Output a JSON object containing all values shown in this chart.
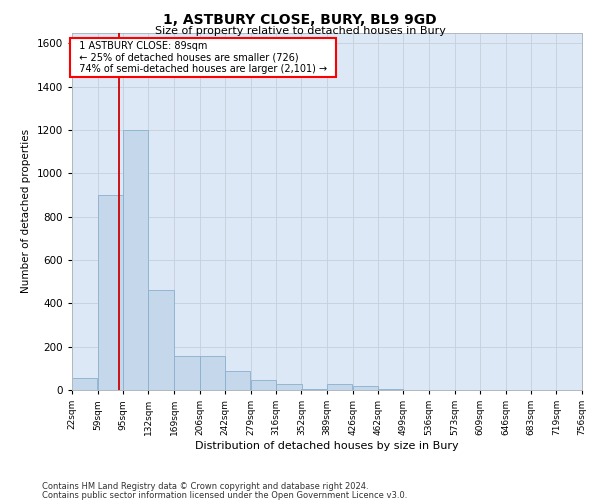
{
  "title": "1, ASTBURY CLOSE, BURY, BL9 9GD",
  "subtitle": "Size of property relative to detached houses in Bury",
  "xlabel": "Distribution of detached houses by size in Bury",
  "ylabel": "Number of detached properties",
  "footnote1": "Contains HM Land Registry data © Crown copyright and database right 2024.",
  "footnote2": "Contains public sector information licensed under the Open Government Licence v3.0.",
  "annotation_line1": "1 ASTBURY CLOSE: 89sqm",
  "annotation_line2": "← 25% of detached houses are smaller (726)",
  "annotation_line3": "74% of semi-detached houses are larger (2,101) →",
  "property_line_x": 89,
  "bin_edges": [
    22,
    59,
    95,
    132,
    169,
    206,
    242,
    279,
    316,
    352,
    389,
    426,
    462,
    499,
    536,
    573,
    609,
    646,
    683,
    719,
    756
  ],
  "bar_values": [
    55,
    900,
    1200,
    460,
    155,
    155,
    90,
    45,
    30,
    5,
    30,
    20,
    5,
    0,
    0,
    0,
    0,
    0,
    0,
    0
  ],
  "bar_color": "#c5d8eb",
  "bar_edgecolor": "#8ab0cc",
  "line_color": "#cc0000",
  "grid_color": "#c5d0db",
  "bg_color": "#dce8f5",
  "ylim": [
    0,
    1650
  ],
  "yticks": [
    0,
    200,
    400,
    600,
    800,
    1000,
    1200,
    1400,
    1600
  ]
}
